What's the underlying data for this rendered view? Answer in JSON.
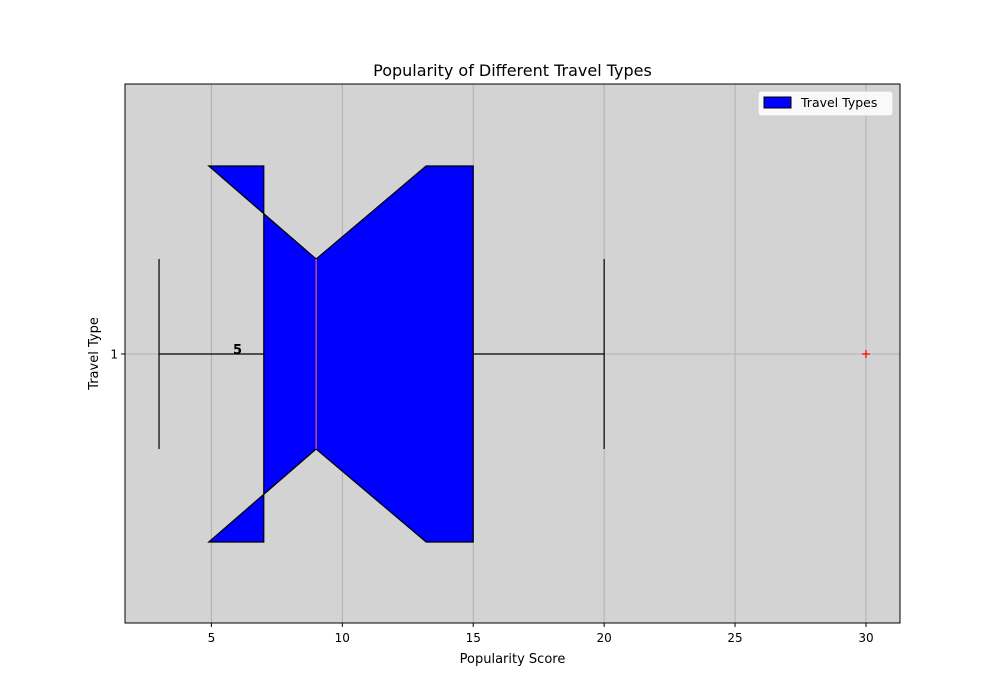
{
  "chart_data": {
    "type": "boxplot",
    "orientation": "horizontal",
    "notched": true,
    "title": "Popularity of Different Travel Types",
    "xlabel": "Popularity Score",
    "ylabel": "Travel Type",
    "xlim": [
      1.7,
      31.3
    ],
    "xticks": [
      5,
      10,
      15,
      20,
      25,
      30
    ],
    "yticks": [
      "1"
    ],
    "grid": true,
    "legend": {
      "label": "Travel Types",
      "position": "top-right"
    },
    "boxes": [
      {
        "category": "1",
        "whisker_low": 3,
        "q1": 7,
        "median": 9,
        "q3": 15,
        "whisker_high": 20,
        "notch_low": 4.9,
        "notch_high": 13.2,
        "outliers": [
          30
        ],
        "annotation": "5",
        "annotation_x": 6
      }
    ],
    "colors": {
      "box_fill": "#0000ff",
      "median": "#e06060",
      "outlier": "#ff0000",
      "plot_background": "#d3d3d3",
      "grid": "#b0b0b0"
    }
  }
}
